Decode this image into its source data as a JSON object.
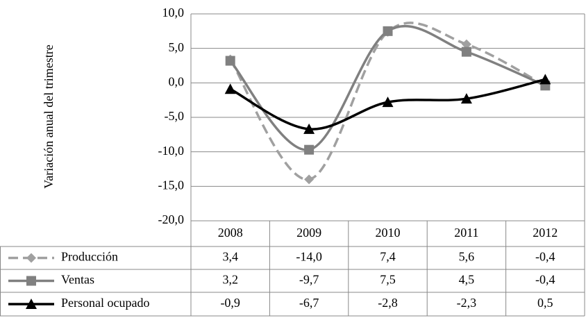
{
  "chart_data": {
    "type": "line",
    "y_axis_label": "Variación anual del trimestre",
    "categories": [
      "2008",
      "2009",
      "2010",
      "2011",
      "2012"
    ],
    "series": [
      {
        "name": "Producción",
        "color": "#a0a0a0",
        "dashed": true,
        "marker": "diamond",
        "values": [
          3.4,
          -14.0,
          7.4,
          5.6,
          -0.4
        ],
        "value_labels": [
          "3,4",
          "-14,0",
          "7,4",
          "5,6",
          "-0,4"
        ]
      },
      {
        "name": "Ventas",
        "color": "#808080",
        "dashed": false,
        "marker": "square",
        "values": [
          3.2,
          -9.7,
          7.5,
          4.5,
          -0.4
        ],
        "value_labels": [
          "3,2",
          "-9,7",
          "7,5",
          "4,5",
          "-0,4"
        ]
      },
      {
        "name": "Personal ocupado",
        "color": "#000000",
        "dashed": false,
        "marker": "triangle",
        "values": [
          -0.9,
          -6.7,
          -2.8,
          -2.3,
          0.5
        ],
        "value_labels": [
          "-0,9",
          "-6,7",
          "-2,8",
          "-2,3",
          "0,5"
        ]
      }
    ],
    "ylim": [
      -20,
      10
    ],
    "yticks": [
      {
        "value": -20,
        "label": "-20,0"
      },
      {
        "value": -15,
        "label": "-15,0"
      },
      {
        "value": -10,
        "label": "-10,0"
      },
      {
        "value": -5,
        "label": "-5,0"
      },
      {
        "value": 0,
        "label": "0,0"
      },
      {
        "value": 5,
        "label": "5,0"
      },
      {
        "value": 10,
        "label": "10,0"
      }
    ],
    "grid": true,
    "smooth": true
  }
}
